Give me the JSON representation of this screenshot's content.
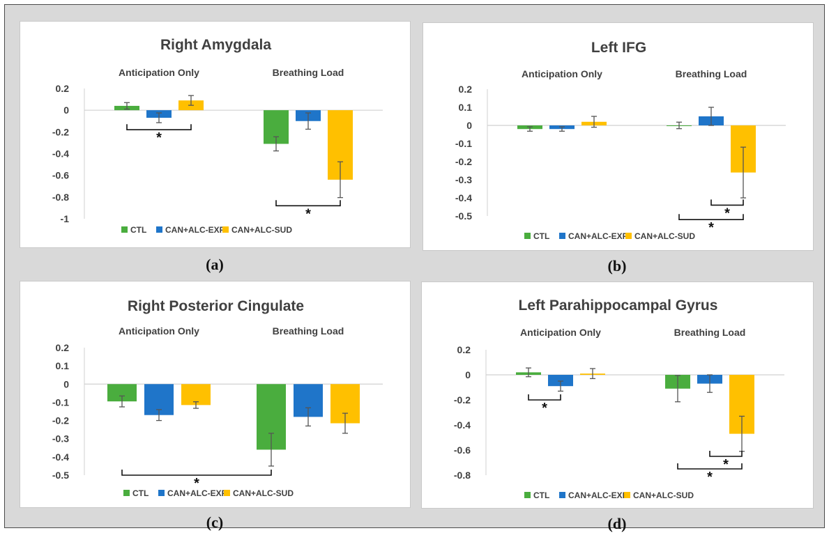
{
  "chart_data": [
    {
      "type": "bar",
      "panel_label": "(a)",
      "title": "Right Amygdala",
      "groups": [
        "Anticipation Only",
        "Breathing Load"
      ],
      "series": [
        {
          "name": "CTL",
          "color": "#4aad3e",
          "values": [
            0.04,
            -0.31
          ],
          "errors": [
            0.03,
            0.065
          ]
        },
        {
          "name": "CAN+ALC-EXP",
          "color": "#1f75c9",
          "values": [
            -0.07,
            -0.1
          ],
          "errors": [
            0.045,
            0.075
          ]
        },
        {
          "name": "CAN+ALC-SUD",
          "color": "#ffc000",
          "values": [
            0.09,
            -0.64
          ],
          "errors": [
            0.045,
            0.165
          ]
        }
      ],
      "ylim": [
        -1,
        0.2
      ],
      "yticks": [
        0.2,
        0,
        -0.2,
        -0.4,
        -0.6,
        -0.8,
        -1
      ],
      "ytick_labels": [
        "0.2",
        "0",
        "-0.2",
        "-0.4",
        "-0.6",
        "-0.8",
        "-1"
      ],
      "significance": [
        {
          "group": 0,
          "from": 0,
          "to": 2,
          "y": -0.18,
          "label": "*"
        },
        {
          "group": 1,
          "from": 0,
          "to": 2,
          "y": -0.88,
          "label": "*"
        }
      ],
      "legend_position": "bottom"
    },
    {
      "type": "bar",
      "panel_label": "(b)",
      "title": "Left IFG",
      "groups": [
        "Anticipation Only",
        "Breathing Load"
      ],
      "series": [
        {
          "name": "CTL",
          "color": "#4aad3e",
          "values": [
            -0.02,
            0.0
          ],
          "errors": [
            0.012,
            0.018
          ]
        },
        {
          "name": "CAN+ALC-EXP",
          "color": "#1f75c9",
          "values": [
            -0.02,
            0.05
          ],
          "errors": [
            0.012,
            0.05
          ]
        },
        {
          "name": "CAN+ALC-SUD",
          "color": "#ffc000",
          "values": [
            0.02,
            -0.26
          ],
          "errors": [
            0.03,
            0.14
          ]
        }
      ],
      "ylim": [
        -0.5,
        0.2
      ],
      "yticks": [
        0.2,
        0.1,
        0,
        -0.1,
        -0.2,
        -0.3,
        -0.4,
        -0.5
      ],
      "ytick_labels": [
        "0.2",
        "0.1",
        "0",
        "-0.1",
        "-0.2",
        "-0.3",
        "-0.4",
        "-0.5"
      ],
      "significance": [
        {
          "group": 1,
          "from": 1,
          "to": 2,
          "y": -0.44,
          "label": "*"
        },
        {
          "group": 1,
          "from": 0,
          "to": 2,
          "y": -0.52,
          "label": "*"
        }
      ],
      "legend_position": "bottom"
    },
    {
      "type": "bar",
      "panel_label": "(c)",
      "title": "Right Posterior Cingulate",
      "groups": [
        "Anticipation Only",
        "Breathing Load"
      ],
      "series": [
        {
          "name": "CTL",
          "color": "#4aad3e",
          "values": [
            -0.095,
            -0.36
          ],
          "errors": [
            0.03,
            0.09
          ]
        },
        {
          "name": "CAN+ALC-EXP",
          "color": "#1f75c9",
          "values": [
            -0.17,
            -0.18
          ],
          "errors": [
            0.03,
            0.05
          ]
        },
        {
          "name": "CAN+ALC-SUD",
          "color": "#ffc000",
          "values": [
            -0.115,
            -0.215
          ],
          "errors": [
            0.018,
            0.055
          ]
        }
      ],
      "ylim": [
        -0.5,
        0.2
      ],
      "yticks": [
        0.2,
        0.1,
        0,
        -0.1,
        -0.2,
        -0.3,
        -0.4,
        -0.5
      ],
      "ytick_labels": [
        "0.2",
        "0.1",
        "0",
        "-0.1",
        "-0.2",
        "-0.3",
        "-0.4",
        "-0.5"
      ],
      "significance": [
        {
          "from_group": 0,
          "from": 0,
          "to_group": 1,
          "to": 0,
          "y": -0.5,
          "label": "*"
        }
      ],
      "legend_position": "bottom"
    },
    {
      "type": "bar",
      "panel_label": "(d)",
      "title": "Left Parahippocampal Gyrus",
      "groups": [
        "Anticipation Only",
        "Breathing Load"
      ],
      "series": [
        {
          "name": "CTL",
          "color": "#4aad3e",
          "values": [
            0.02,
            -0.11
          ],
          "errors": [
            0.035,
            0.105
          ]
        },
        {
          "name": "CAN+ALC-EXP",
          "color": "#1f75c9",
          "values": [
            -0.09,
            -0.07
          ],
          "errors": [
            0.04,
            0.07
          ]
        },
        {
          "name": "CAN+ALC-SUD",
          "color": "#ffc000",
          "values": [
            0.01,
            -0.47
          ],
          "errors": [
            0.04,
            0.14
          ]
        }
      ],
      "ylim": [
        -0.8,
        0.2
      ],
      "yticks": [
        0.2,
        0,
        -0.2,
        -0.4,
        -0.6,
        -0.8
      ],
      "ytick_labels": [
        "0.2",
        "0",
        "-0.2",
        "-0.4",
        "-0.6",
        "-0.8"
      ],
      "significance": [
        {
          "group": 0,
          "from": 0,
          "to": 1,
          "y": -0.2,
          "label": "*"
        },
        {
          "group": 1,
          "from": 1,
          "to": 2,
          "y": -0.65,
          "label": "*"
        },
        {
          "group": 1,
          "from": 0,
          "to": 2,
          "y": -0.75,
          "label": "*"
        }
      ],
      "legend_position": "bottom"
    }
  ]
}
